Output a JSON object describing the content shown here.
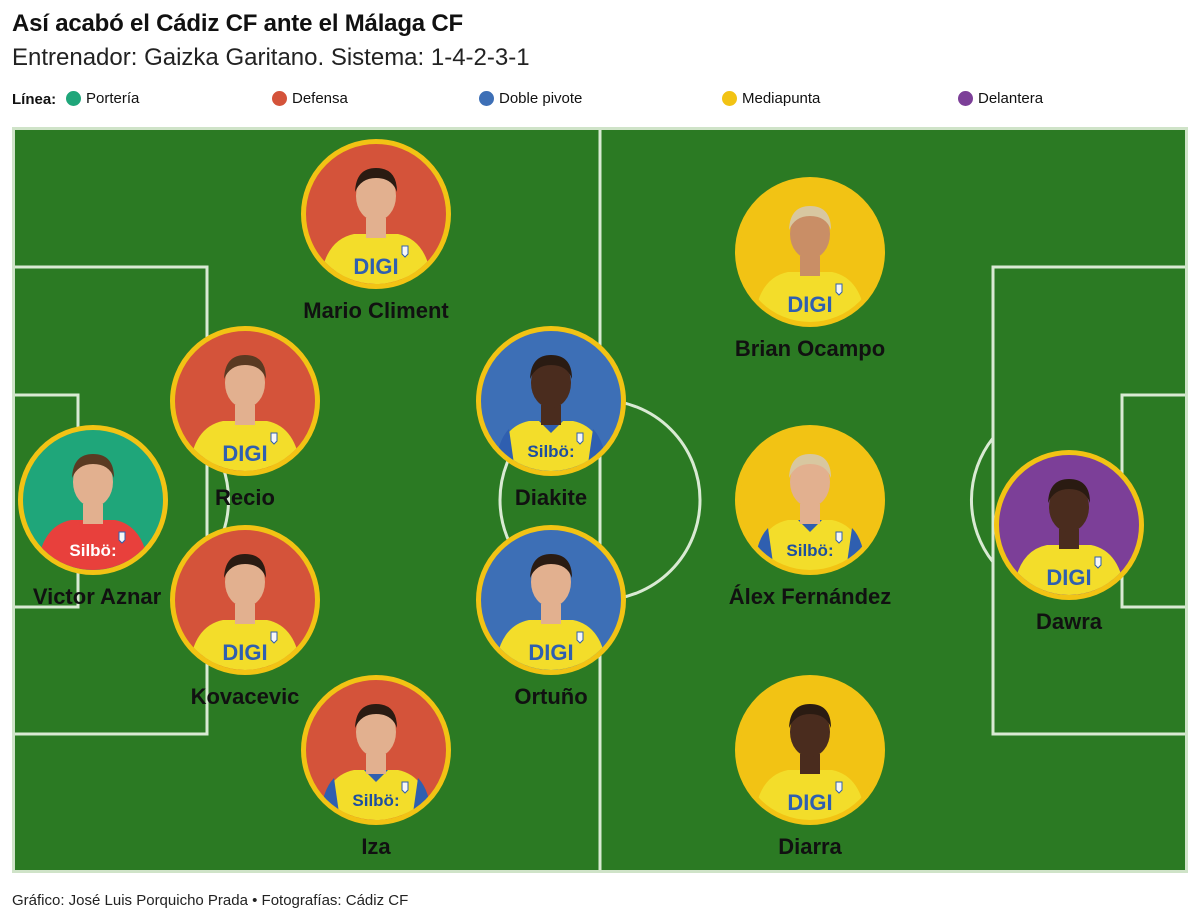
{
  "header": {
    "title": "Así acabó el Cádiz CF ante el Málaga CF",
    "subtitle": "Entrenador: Gaizka Garitano. Sistema: 1-4-2-3-1"
  },
  "legend": {
    "title": "Línea:",
    "items": [
      {
        "label": "Portería",
        "color": "#1fa67a"
      },
      {
        "label": "Defensa",
        "color": "#d4533a"
      },
      {
        "label": "Doble pivote",
        "color": "#3d6fb6"
      },
      {
        "label": "Mediapunta",
        "color": "#f2c314"
      },
      {
        "label": "Delantera",
        "color": "#7c3f98"
      }
    ]
  },
  "colors": {
    "pitch": "#2b7a23",
    "ring": "#f2c314",
    "kit_yellow": "#f3dd2a",
    "kit_blue": "#2f5fb0",
    "gk_kit": "#e8403c",
    "skin": "#d9a27c",
    "skin_dark": "#4a2c1e",
    "hair": "#2a1b12"
  },
  "players": [
    {
      "name": "Mario Climent",
      "line": "Defensa",
      "bg": "#d4533a",
      "sponsor": "DIGI",
      "kit": "yellow",
      "skin": "light",
      "hair": "dark"
    },
    {
      "name": "Recio",
      "line": "Defensa",
      "bg": "#d4533a",
      "sponsor": "DIGI",
      "kit": "yellow",
      "skin": "light",
      "hair": "brown"
    },
    {
      "name": "Victor Aznar",
      "line": "Portería",
      "bg": "#1fa67a",
      "sponsor": "Silbö:",
      "kit": "red",
      "skin": "light",
      "hair": "brown"
    },
    {
      "name": "Kovacevic",
      "line": "Defensa",
      "bg": "#d4533a",
      "sponsor": "DIGI",
      "kit": "yellow",
      "skin": "light",
      "hair": "dark"
    },
    {
      "name": "Iza",
      "line": "Defensa",
      "bg": "#d4533a",
      "sponsor": "Silbö:",
      "kit": "yellowblue",
      "skin": "light",
      "hair": "dark"
    },
    {
      "name": "Diakite",
      "line": "Doble pivote",
      "bg": "#3d6fb6",
      "sponsor": "Silbö:",
      "kit": "yellowblue",
      "skin": "dark",
      "hair": "dark"
    },
    {
      "name": "Ortuño",
      "line": "Doble pivote",
      "bg": "#3d6fb6",
      "sponsor": "DIGI",
      "kit": "yellow",
      "skin": "light",
      "hair": "dark"
    },
    {
      "name": "Brian Ocampo",
      "line": "Mediapunta",
      "bg": "#f2c314",
      "sponsor": "DIGI",
      "kit": "yellow",
      "skin": "tan",
      "hair": "blond"
    },
    {
      "name": "Álex Fernández",
      "line": "Mediapunta",
      "bg": "#f2c314",
      "sponsor": "Silbö:",
      "kit": "yellowblue",
      "skin": "light",
      "hair": "blond"
    },
    {
      "name": "Diarra",
      "line": "Mediapunta",
      "bg": "#f2c314",
      "sponsor": "DIGI",
      "kit": "yellow",
      "skin": "dark",
      "hair": "dark"
    },
    {
      "name": "Dawra",
      "line": "Delantera",
      "bg": "#7c3f98",
      "sponsor": "DIGI",
      "kit": "yellow",
      "skin": "dark",
      "hair": "dark"
    }
  ],
  "footer": {
    "credit": "Gráfico: José Luis Porquicho Prada • Fotografías: Cádiz CF"
  }
}
